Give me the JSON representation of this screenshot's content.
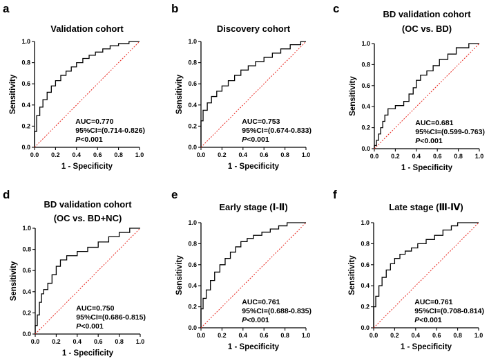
{
  "chart_data": [
    {
      "panel": "a",
      "type": "line",
      "title": "Validation cohort",
      "title_line2": "",
      "xlabel": "1 - Specificity",
      "ylabel": "Sensitivity",
      "xlim": [
        0,
        1
      ],
      "ylim": [
        0,
        1
      ],
      "xticks": [
        "0.0",
        "0.2",
        "0.4",
        "0.6",
        "0.8",
        "1.0"
      ],
      "yticks": [
        "0.0",
        "0.2",
        "0.4",
        "0.6",
        "0.8",
        "1.0"
      ],
      "auc": "AUC=0.770",
      "ci": "95%CI=(0.714-0.826)",
      "p_prefix": "P",
      "p_value": "<0.001",
      "series": [
        {
          "name": "ROC",
          "color": "#000000",
          "x": [
            0,
            0,
            0.02,
            0.02,
            0.05,
            0.05,
            0.08,
            0.08,
            0.12,
            0.12,
            0.16,
            0.16,
            0.2,
            0.2,
            0.25,
            0.25,
            0.3,
            0.3,
            0.35,
            0.35,
            0.4,
            0.4,
            0.46,
            0.46,
            0.52,
            0.52,
            0.58,
            0.58,
            0.65,
            0.65,
            0.72,
            0.72,
            0.8,
            0.8,
            0.9,
            0.9,
            1
          ],
          "y": [
            0,
            0.15,
            0.15,
            0.3,
            0.3,
            0.38,
            0.38,
            0.45,
            0.45,
            0.52,
            0.52,
            0.58,
            0.58,
            0.63,
            0.63,
            0.68,
            0.68,
            0.72,
            0.72,
            0.76,
            0.76,
            0.8,
            0.8,
            0.84,
            0.84,
            0.87,
            0.87,
            0.9,
            0.9,
            0.93,
            0.93,
            0.96,
            0.96,
            0.98,
            0.98,
            1,
            1
          ]
        },
        {
          "name": "Reference",
          "color": "#e8261e",
          "x": [
            0,
            1
          ],
          "y": [
            0,
            1
          ]
        }
      ]
    },
    {
      "panel": "b",
      "type": "line",
      "title": "Discovery cohort",
      "title_line2": "",
      "xlabel": "1 - Specificity",
      "ylabel": "Sensitivity",
      "xlim": [
        0,
        1
      ],
      "ylim": [
        0,
        1
      ],
      "xticks": [
        "0.0",
        "0.2",
        "0.4",
        "0.6",
        "0.8",
        "1.0"
      ],
      "yticks": [
        "0.0",
        "0.2",
        "0.4",
        "0.6",
        "0.8",
        "1.0"
      ],
      "auc": "AUC=0.753",
      "ci": "95%CI=(0.674-0.833)",
      "p_prefix": "P",
      "p_value": "<0.001",
      "series": [
        {
          "name": "ROC",
          "color": "#000000",
          "x": [
            0,
            0,
            0.02,
            0.02,
            0.06,
            0.06,
            0.1,
            0.1,
            0.15,
            0.15,
            0.2,
            0.2,
            0.26,
            0.26,
            0.32,
            0.32,
            0.38,
            0.38,
            0.45,
            0.45,
            0.52,
            0.52,
            0.6,
            0.6,
            0.68,
            0.68,
            0.76,
            0.76,
            0.85,
            0.85,
            0.95,
            0.95,
            1
          ],
          "y": [
            0,
            0.25,
            0.25,
            0.35,
            0.35,
            0.42,
            0.42,
            0.48,
            0.48,
            0.53,
            0.53,
            0.58,
            0.58,
            0.63,
            0.63,
            0.68,
            0.68,
            0.73,
            0.73,
            0.77,
            0.77,
            0.81,
            0.81,
            0.85,
            0.85,
            0.89,
            0.89,
            0.93,
            0.93,
            0.97,
            0.97,
            1,
            1
          ]
        },
        {
          "name": "Reference",
          "color": "#e8261e",
          "x": [
            0,
            1
          ],
          "y": [
            0,
            1
          ]
        }
      ]
    },
    {
      "panel": "c",
      "type": "line",
      "title": "BD validation cohort",
      "title_line2": "(OC vs. BD)",
      "xlabel": "1 - Specificity",
      "ylabel": "Sensitivity",
      "xlim": [
        0,
        1
      ],
      "ylim": [
        0,
        1
      ],
      "xticks": [
        "0.0",
        "0.2",
        "0.4",
        "0.6",
        "0.8",
        "1.0"
      ],
      "yticks": [
        "0.0",
        "0.2",
        "0.4",
        "0.6",
        "0.8",
        "1.0"
      ],
      "auc": "AUC=0.681",
      "ci": "95%CI=(0.599-0.763)",
      "p_prefix": "P",
      "p_value": "<0.001",
      "series": [
        {
          "name": "ROC",
          "color": "#000000",
          "x": [
            0,
            0,
            0.02,
            0.02,
            0.04,
            0.04,
            0.06,
            0.06,
            0.08,
            0.08,
            0.1,
            0.1,
            0.13,
            0.13,
            0.2,
            0.2,
            0.28,
            0.28,
            0.33,
            0.33,
            0.37,
            0.37,
            0.4,
            0.4,
            0.44,
            0.44,
            0.5,
            0.5,
            0.56,
            0.56,
            0.62,
            0.62,
            0.7,
            0.7,
            0.78,
            0.78,
            0.9,
            0.9,
            1
          ],
          "y": [
            0,
            0.03,
            0.03,
            0.08,
            0.08,
            0.14,
            0.14,
            0.2,
            0.2,
            0.26,
            0.26,
            0.32,
            0.32,
            0.38,
            0.38,
            0.41,
            0.41,
            0.45,
            0.45,
            0.52,
            0.52,
            0.58,
            0.58,
            0.65,
            0.65,
            0.7,
            0.7,
            0.74,
            0.74,
            0.79,
            0.79,
            0.85,
            0.85,
            0.9,
            0.9,
            0.96,
            0.96,
            1,
            1
          ]
        },
        {
          "name": "Reference",
          "color": "#e8261e",
          "x": [
            0,
            1
          ],
          "y": [
            0,
            1
          ]
        }
      ]
    },
    {
      "panel": "d",
      "type": "line",
      "title": "BD validation cohort",
      "title_line2": "(OC vs. BD+NC)",
      "xlabel": "1 - Specificity",
      "ylabel": "Sensitivity",
      "xlim": [
        0,
        1
      ],
      "ylim": [
        0,
        1
      ],
      "xticks": [
        "0.0",
        "0.2",
        "0.4",
        "0.6",
        "0.8",
        "1.0"
      ],
      "yticks": [
        "0.0",
        "0.2",
        "0.4",
        "0.6",
        "0.8",
        "1.0"
      ],
      "auc": "AUC=0.750",
      "ci": "95%CI=(0.686-0.815)",
      "p_prefix": "P",
      "p_value": "<0.001",
      "series": [
        {
          "name": "ROC",
          "color": "#000000",
          "x": [
            0,
            0,
            0.02,
            0.02,
            0.04,
            0.04,
            0.06,
            0.06,
            0.08,
            0.08,
            0.12,
            0.12,
            0.16,
            0.16,
            0.2,
            0.2,
            0.24,
            0.24,
            0.3,
            0.3,
            0.4,
            0.4,
            0.5,
            0.5,
            0.6,
            0.6,
            0.7,
            0.7,
            0.8,
            0.8,
            0.9,
            0.9,
            1
          ],
          "y": [
            0,
            0.08,
            0.08,
            0.18,
            0.18,
            0.3,
            0.3,
            0.38,
            0.38,
            0.42,
            0.42,
            0.48,
            0.48,
            0.56,
            0.56,
            0.64,
            0.64,
            0.7,
            0.7,
            0.74,
            0.74,
            0.78,
            0.78,
            0.82,
            0.82,
            0.87,
            0.87,
            0.92,
            0.92,
            0.96,
            0.96,
            1,
            1
          ]
        },
        {
          "name": "Reference",
          "color": "#e8261e",
          "x": [
            0,
            1
          ],
          "y": [
            0,
            1
          ]
        }
      ]
    },
    {
      "panel": "e",
      "type": "line",
      "title": "Early stage (Ⅰ-Ⅱ)",
      "title_line2": "",
      "xlabel": "1 - Specificity",
      "ylabel": "Sensitivity",
      "xlim": [
        0,
        1
      ],
      "ylim": [
        0,
        1
      ],
      "xticks": [
        "0.0",
        "0.2",
        "0.4",
        "0.6",
        "0.8",
        "1.0"
      ],
      "yticks": [
        "0.0",
        "0.2",
        "0.4",
        "0.6",
        "0.8",
        "1.0"
      ],
      "auc": "AUC=0.761",
      "ci": "95%CI=(0.688-0.835)",
      "p_prefix": "P",
      "p_value": "<0.001",
      "series": [
        {
          "name": "ROC",
          "color": "#000000",
          "x": [
            0,
            0,
            0.02,
            0.02,
            0.05,
            0.05,
            0.09,
            0.09,
            0.13,
            0.13,
            0.18,
            0.18,
            0.23,
            0.23,
            0.28,
            0.28,
            0.33,
            0.33,
            0.38,
            0.38,
            0.44,
            0.44,
            0.5,
            0.5,
            0.58,
            0.58,
            0.66,
            0.66,
            0.74,
            0.74,
            0.82,
            0.82,
            1
          ],
          "y": [
            0,
            0.18,
            0.18,
            0.28,
            0.28,
            0.36,
            0.36,
            0.45,
            0.45,
            0.53,
            0.53,
            0.6,
            0.6,
            0.66,
            0.66,
            0.72,
            0.72,
            0.77,
            0.77,
            0.82,
            0.82,
            0.85,
            0.85,
            0.88,
            0.88,
            0.91,
            0.91,
            0.94,
            0.94,
            0.97,
            0.97,
            1,
            1
          ]
        },
        {
          "name": "Reference",
          "color": "#e8261e",
          "x": [
            0,
            1
          ],
          "y": [
            0,
            1
          ]
        }
      ]
    },
    {
      "panel": "f",
      "type": "line",
      "title": "Late stage (Ⅲ-Ⅳ)",
      "title_line2": "",
      "xlabel": "1 - Specificity",
      "ylabel": "Sensitivity",
      "xlim": [
        0,
        1
      ],
      "ylim": [
        0,
        1
      ],
      "xticks": [
        "0.0",
        "0.2",
        "0.4",
        "0.6",
        "0.8",
        "1.0"
      ],
      "yticks": [
        "0.0",
        "0.2",
        "0.4",
        "0.6",
        "0.8",
        "1.0"
      ],
      "auc": "AUC=0.761",
      "ci": "95%CI=(0.708-0.814)",
      "p_prefix": "P",
      "p_value": "<0.001",
      "series": [
        {
          "name": "ROC",
          "color": "#000000",
          "x": [
            0,
            0,
            0.02,
            0.02,
            0.05,
            0.05,
            0.08,
            0.08,
            0.12,
            0.12,
            0.16,
            0.16,
            0.2,
            0.2,
            0.25,
            0.25,
            0.3,
            0.3,
            0.36,
            0.36,
            0.42,
            0.42,
            0.5,
            0.5,
            0.58,
            0.58,
            0.66,
            0.66,
            0.74,
            0.74,
            0.8,
            0.8,
            1
          ],
          "y": [
            0,
            0.2,
            0.2,
            0.3,
            0.3,
            0.4,
            0.4,
            0.48,
            0.48,
            0.55,
            0.55,
            0.61,
            0.61,
            0.66,
            0.66,
            0.7,
            0.7,
            0.73,
            0.73,
            0.76,
            0.76,
            0.8,
            0.8,
            0.84,
            0.84,
            0.88,
            0.88,
            0.93,
            0.93,
            0.97,
            0.97,
            1,
            1
          ]
        },
        {
          "name": "Reference",
          "color": "#e8261e",
          "x": [
            0,
            1
          ],
          "y": [
            0,
            1
          ]
        }
      ]
    }
  ]
}
